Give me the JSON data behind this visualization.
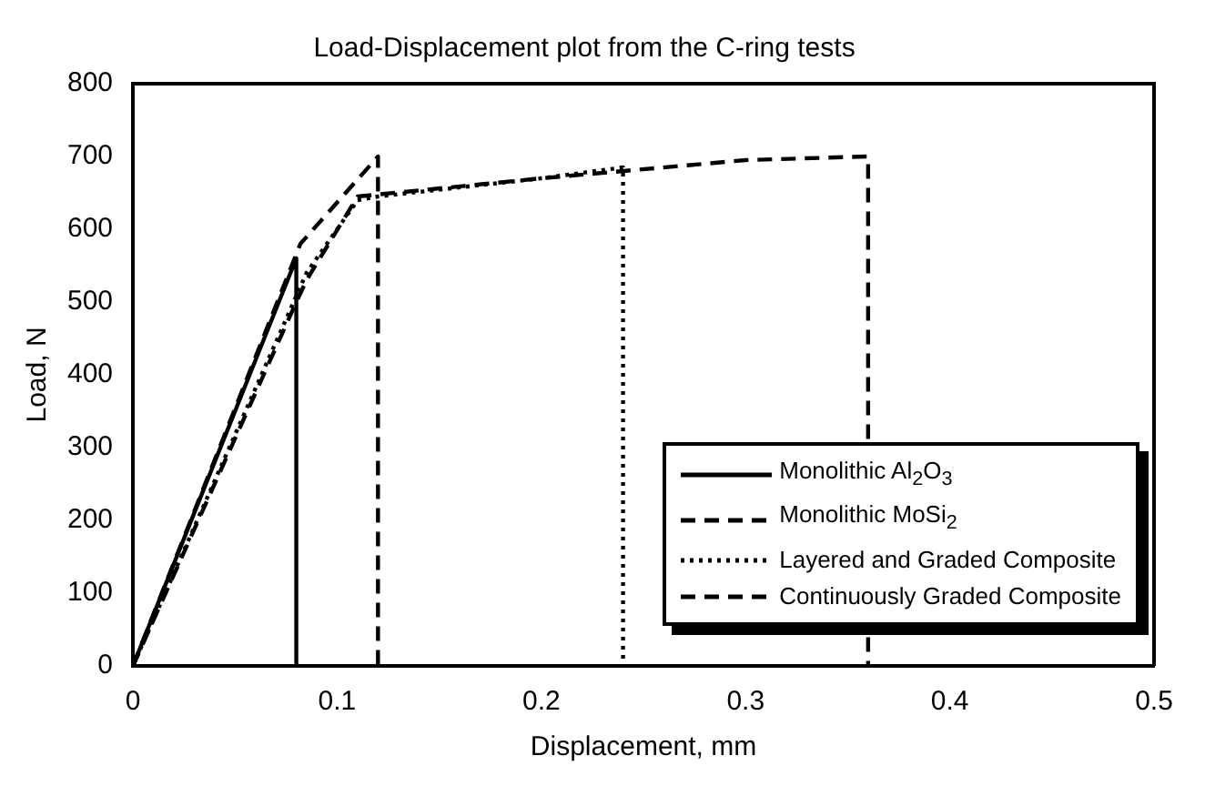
{
  "chart_data": {
    "type": "line",
    "title": "Load-Displacement plot from the C-ring tests",
    "xlabel": "Displacement, mm",
    "ylabel": "Load, N",
    "xlim": [
      0,
      0.5
    ],
    "xticks": [
      0,
      0.1,
      0.2,
      0.3,
      0.4,
      0.5
    ],
    "ylim": [
      0,
      800
    ],
    "yticks": [
      0,
      100,
      200,
      300,
      400,
      500,
      600,
      700,
      800
    ],
    "grid": false,
    "legend": "bottom right",
    "marker": "none",
    "series": [
      {
        "name": "Monolithic Al$_{2}$O$_{3}$",
        "color": "#000000",
        "line_style": "solid",
        "x": [
          0,
          0.08,
          0.08
        ],
        "values": [
          0,
          560,
          0
        ]
      },
      {
        "name": "Monolithic MoSi$_{2}$",
        "color": "#000000",
        "line_style": "dashed",
        "x": [
          0,
          0.082,
          0.12,
          0.12
        ],
        "values": [
          0,
          580,
          700,
          0
        ]
      },
      {
        "name": "Layered and Graded Composite",
        "color": "#000000",
        "line_style": "dotted",
        "x": [
          0,
          0.085,
          0.11,
          0.12,
          0.2,
          0.24,
          0.24
        ],
        "values": [
          0,
          540,
          640,
          645,
          670,
          685,
          0
        ]
      },
      {
        "name": "Continuously Graded Composite",
        "color": "#000000",
        "line_style": "dashed",
        "x": [
          0,
          0.08,
          0.085,
          0.11,
          0.2,
          0.3,
          0.36,
          0.36
        ],
        "values": [
          0,
          500,
          530,
          645,
          670,
          695,
          700,
          0
        ]
      }
    ]
  }
}
